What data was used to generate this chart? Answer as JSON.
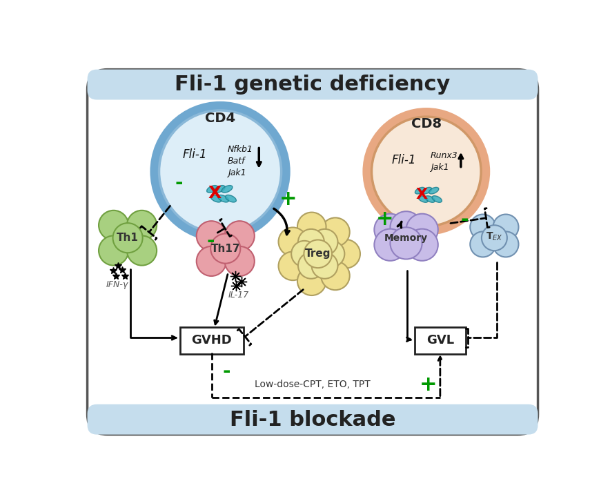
{
  "title_top": "Fli-1 genetic deficiency",
  "title_bottom": "Fli-1 blockade",
  "subtitle_bottom": "Low-dose-CPT, ETO, TPT",
  "bg_banner_top": "#c5dded",
  "bg_banner_bottom": "#c5dded",
  "cd4_outer_color": "#6fa8d0",
  "cd4_inner_color": "#ddeef8",
  "cd8_outer_color": "#e8a882",
  "cd8_inner_color": "#f8e8d8",
  "th1_color": "#a8d080",
  "th1_edge": "#70a040",
  "th17_color": "#e8a0a8",
  "th17_edge": "#c06070",
  "treg_color": "#ede8a0",
  "treg_color2": "#f5e880",
  "treg_edge": "#b0a060",
  "memory_color": "#c8bce8",
  "memory_edge": "#9080c0",
  "tex_color": "#b8d4e8",
  "tex_edge": "#7090b0",
  "green_plus": "#009900",
  "arrow_color": "#111111",
  "minus_char": "-",
  "plus_char": "+"
}
